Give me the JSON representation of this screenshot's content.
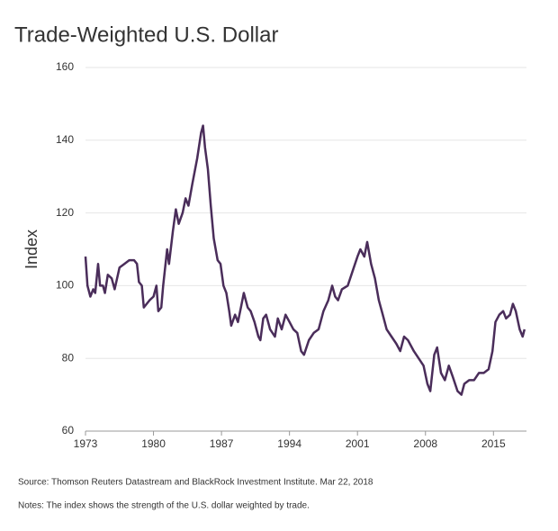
{
  "chart_data": {
    "type": "line",
    "title": "Trade-Weighted U.S. Dollar",
    "y_label": "Index",
    "source": "Source: Thomson Reuters Datastream and BlackRock Investment Institute. Mar 22, 2018",
    "notes": "Notes: The index shows the strength of the U.S. dollar weighted by trade.",
    "x": [
      1973.0,
      1973.2,
      1973.5,
      1973.8,
      1974.0,
      1974.3,
      1974.5,
      1974.8,
      1975.0,
      1975.3,
      1975.7,
      1976.0,
      1976.5,
      1977.0,
      1977.5,
      1978.0,
      1978.3,
      1978.5,
      1978.8,
      1979.0,
      1979.3,
      1979.6,
      1980.0,
      1980.3,
      1980.5,
      1980.8,
      1981.0,
      1981.4,
      1981.6,
      1982.0,
      1982.3,
      1982.6,
      1983.0,
      1983.3,
      1983.6,
      1984.0,
      1984.5,
      1984.9,
      1985.1,
      1985.3,
      1985.6,
      1985.9,
      1986.2,
      1986.6,
      1986.9,
      1987.2,
      1987.5,
      1987.8,
      1988.0,
      1988.4,
      1988.7,
      1989.0,
      1989.3,
      1989.7,
      1990.0,
      1990.4,
      1990.8,
      1991.0,
      1991.3,
      1991.6,
      1992.0,
      1992.5,
      1992.8,
      1993.2,
      1993.6,
      1994.0,
      1994.4,
      1994.8,
      1995.2,
      1995.5,
      1996.0,
      1996.5,
      1997.0,
      1997.5,
      1998.0,
      1998.4,
      1998.7,
      1999.0,
      1999.4,
      2000.0,
      2000.5,
      2001.0,
      2001.3,
      2001.7,
      2002.0,
      2002.4,
      2002.8,
      2003.2,
      2003.6,
      2004.0,
      2004.5,
      2005.0,
      2005.4,
      2005.8,
      2006.2,
      2006.8,
      2007.3,
      2007.8,
      2008.2,
      2008.5,
      2008.9,
      2009.2,
      2009.6,
      2010.0,
      2010.4,
      2010.8,
      2011.3,
      2011.7,
      2012.0,
      2012.5,
      2013.0,
      2013.5,
      2014.0,
      2014.5,
      2014.9,
      2015.2,
      2015.6,
      2016.0,
      2016.3,
      2016.7,
      2017.0,
      2017.3,
      2017.7,
      2018.0,
      2018.2
    ],
    "series": [
      {
        "name": "Trade-Weighted U.S. Dollar",
        "color": "#4a2d5a",
        "values": [
          108,
          100,
          97,
          99,
          98,
          106,
          100,
          100,
          98,
          103,
          102,
          99,
          105,
          106,
          107,
          107,
          106,
          101,
          100,
          94,
          95,
          96,
          97,
          100,
          93,
          94,
          100,
          110,
          106,
          115,
          121,
          117,
          120,
          124,
          122,
          128,
          135,
          142,
          144,
          138,
          132,
          122,
          113,
          107,
          106,
          100,
          98,
          93,
          89,
          92,
          90,
          94,
          98,
          94,
          93,
          90,
          86,
          85,
          91,
          92,
          88,
          86,
          91,
          88,
          92,
          90,
          88,
          87,
          82,
          81,
          85,
          87,
          88,
          93,
          96,
          100,
          97,
          96,
          99,
          100,
          104,
          108,
          110,
          108,
          112,
          106,
          102,
          96,
          92,
          88,
          86,
          84,
          82,
          86,
          85,
          82,
          80,
          78,
          73,
          71,
          81,
          83,
          76,
          74,
          78,
          75,
          71,
          70,
          73,
          74,
          74,
          76,
          76,
          77,
          82,
          90,
          92,
          93,
          91,
          92,
          95,
          93,
          88,
          86,
          88
        ]
      }
    ],
    "xlim": [
      1973,
      2018.4
    ],
    "xticks": [
      1973,
      1980,
      1987,
      1994,
      2001,
      2008,
      2015
    ],
    "ylim": [
      60,
      160
    ],
    "yticks": [
      60,
      80,
      100,
      120,
      140,
      160
    ],
    "grid": true
  }
}
